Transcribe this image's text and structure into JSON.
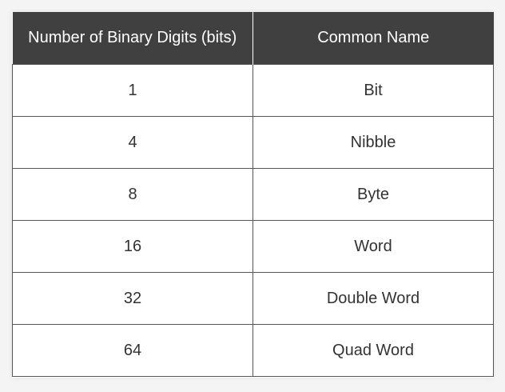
{
  "table": {
    "headers": [
      "Number of Binary Digits (bits)",
      "Common Name"
    ],
    "rows": [
      [
        "1",
        "Bit"
      ],
      [
        "4",
        "Nibble"
      ],
      [
        "8",
        "Byte"
      ],
      [
        "16",
        "Word"
      ],
      [
        "32",
        "Double Word"
      ],
      [
        "64",
        "Quad Word"
      ]
    ]
  },
  "colors": {
    "header_bg": "#404040",
    "header_text": "#ffffff",
    "cell_text": "#333333",
    "border": "#555555"
  }
}
